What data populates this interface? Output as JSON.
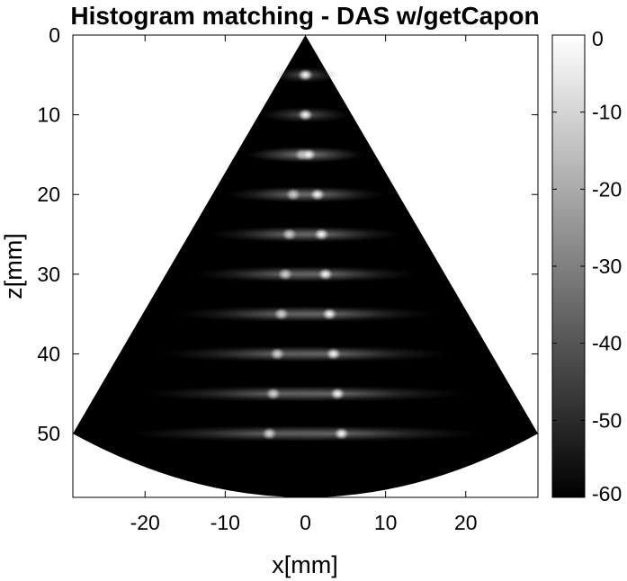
{
  "chart_data": {
    "type": "heatmap",
    "title": "Histogram matching - DAS w/getCapon",
    "xlabel": "x[mm]",
    "ylabel": "z[mm]",
    "xlim": [
      -29,
      29
    ],
    "ylim": [
      0,
      58
    ],
    "y_reversed": true,
    "x_ticks": [
      "-20",
      "-10",
      "0",
      "10",
      "20"
    ],
    "x_tick_values": [
      -20,
      -10,
      0,
      10,
      20
    ],
    "y_ticks": [
      "0",
      "10",
      "20",
      "30",
      "40",
      "50"
    ],
    "y_tick_values": [
      0,
      10,
      20,
      30,
      40,
      50
    ],
    "colormap": "gray",
    "colorbar": {
      "ticks": [
        "0",
        "-10",
        "-20",
        "-30",
        "-40",
        "-50",
        "-60"
      ],
      "tick_values": [
        0,
        -10,
        -20,
        -30,
        -40,
        -50,
        -60
      ],
      "range": [
        -60,
        0
      ]
    },
    "sector": {
      "apex": [
        0,
        0
      ],
      "left_edge_end": [
        -29,
        50
      ],
      "right_edge_end": [
        29,
        50
      ],
      "max_depth": 58
    },
    "point_targets": [
      {
        "x": 0,
        "z": 5
      },
      {
        "x": 0,
        "z": 10
      },
      {
        "x": -0.4,
        "z": 15
      },
      {
        "x": 0.4,
        "z": 15
      },
      {
        "x": -1.5,
        "z": 20
      },
      {
        "x": 1.5,
        "z": 20
      },
      {
        "x": -2,
        "z": 25
      },
      {
        "x": 2,
        "z": 25
      },
      {
        "x": -2.5,
        "z": 30
      },
      {
        "x": 2.5,
        "z": 30
      },
      {
        "x": -3,
        "z": 35
      },
      {
        "x": 3,
        "z": 35
      },
      {
        "x": -3.5,
        "z": 40
      },
      {
        "x": 3.5,
        "z": 40
      },
      {
        "x": -4,
        "z": 45
      },
      {
        "x": 4,
        "z": 45
      },
      {
        "x": -4.5,
        "z": 50
      },
      {
        "x": 4.5,
        "z": 50
      }
    ],
    "background_level": -60,
    "colors": {
      "background": "#000000",
      "target": "#ffffff",
      "frame": "#000000"
    }
  }
}
